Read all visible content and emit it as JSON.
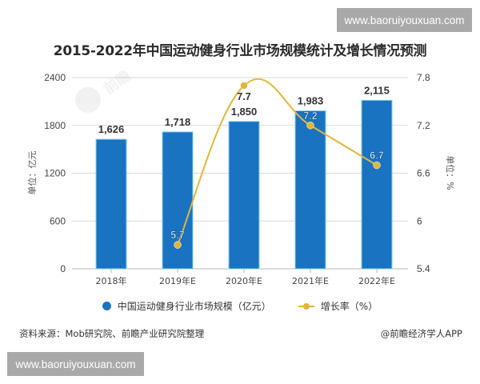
{
  "watermark": {
    "top_text": "www.baoruiyouxuan.com",
    "bottom_text": "www.baoruiyouxuan.com"
  },
  "title": "2015-2022年中国运动健身行业市场规模统计及增长情况预测",
  "axes": {
    "left_unit": "单位：亿元",
    "right_unit": "单位：%",
    "left_ticks": [
      "2400",
      "1800",
      "1200",
      "600",
      "0"
    ],
    "right_ticks": [
      "7.8",
      "7.2",
      "6.6",
      "6",
      "5.4"
    ]
  },
  "legend": {
    "bar_label": "中国运动健身行业市场规模（亿元）",
    "line_label": "增长率（%）"
  },
  "footer": {
    "source": "资料来源：Mob研究院、前瞻产业研究院整理",
    "credit": "@前瞻经济学人APP"
  },
  "colors": {
    "bar": "#1a73c0",
    "bar_border": "#7fd0ee",
    "line": "#e0b73a",
    "grid": "#d9d9d9"
  },
  "chart_data": {
    "type": "bar+line",
    "title": "2015-2022年中国运动健身行业市场规模统计及增长情况预测",
    "categories": [
      "2018年",
      "2019年E",
      "2020年E",
      "2021年E",
      "2022年E"
    ],
    "series": [
      {
        "name": "中国运动健身行业市场规模（亿元）",
        "type": "bar",
        "axis": "left",
        "values": [
          1626,
          1718,
          1850,
          1983,
          2115
        ],
        "labels": [
          "1,626",
          "1,718",
          "1,850",
          "1,983",
          "2,115"
        ]
      },
      {
        "name": "增长率（%）",
        "type": "line",
        "axis": "right",
        "smooth": true,
        "values": [
          null,
          5.7,
          7.7,
          7.2,
          6.7
        ],
        "labels": [
          "",
          "5.7",
          "7.7",
          "7.2",
          "6.7"
        ]
      }
    ],
    "ylabel": "单位：亿元",
    "ylabel_right": "单位：%",
    "ylim": [
      0,
      2400
    ],
    "ylim_right": [
      5.4,
      7.8
    ],
    "yticks": [
      0,
      600,
      1200,
      1800,
      2400
    ],
    "yticks_right": [
      5.4,
      6,
      6.6,
      7.2,
      7.8
    ],
    "grid": true,
    "legend_position": "bottom"
  }
}
